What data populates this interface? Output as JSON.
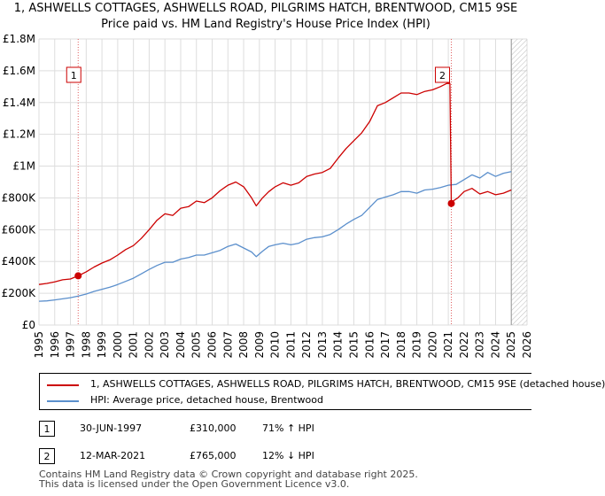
{
  "chart_data": {
    "type": "line",
    "title": "1, ASHWELLS COTTAGES, ASHWELLS ROAD, PILGRIMS HATCH, BRENTWOOD, CM15 9SE",
    "subtitle": "Price paid vs. HM Land Registry's House Price Index (HPI)",
    "xlabel": "",
    "ylabel": "",
    "xlim": [
      1995,
      2026
    ],
    "ylim": [
      0,
      1800000
    ],
    "x_ticks": [
      1995,
      1996,
      1997,
      1998,
      1999,
      2000,
      2001,
      2002,
      2003,
      2004,
      2005,
      2006,
      2007,
      2008,
      2009,
      2010,
      2011,
      2012,
      2013,
      2014,
      2015,
      2016,
      2017,
      2018,
      2019,
      2020,
      2021,
      2022,
      2023,
      2024,
      2025,
      2026
    ],
    "x_tick_labels": [
      "1995",
      "1996",
      "1997",
      "1998",
      "1999",
      "2000",
      "2001",
      "2002",
      "2003",
      "2004",
      "2005",
      "2006",
      "2007",
      "2008",
      "2009",
      "2010",
      "2011",
      "2012",
      "2013",
      "2014",
      "2015",
      "2016",
      "2017",
      "2018",
      "2019",
      "2020",
      "2021",
      "2022",
      "2023",
      "2024",
      "2025",
      "2026"
    ],
    "y_ticks": [
      0,
      200000,
      400000,
      600000,
      800000,
      1000000,
      1200000,
      1400000,
      1600000,
      1800000
    ],
    "y_tick_labels": [
      "£0",
      "£200K",
      "£400K",
      "£600K",
      "£800K",
      "£1M",
      "£1.2M",
      "£1.4M",
      "£1.6M",
      "£1.8M"
    ],
    "grid": true,
    "legend_position": "below",
    "hatched_after": 2025.0,
    "series": [
      {
        "name": "1, ASHWELLS COTTAGES, ASHWELLS ROAD, PILGRIMS HATCH, BRENTWOOD, CM15 9SE (detached house)",
        "color": "#cc0000",
        "x": [
          1995.0,
          1995.5,
          1996.0,
          1996.5,
          1997.0,
          1997.49,
          1998.0,
          1998.5,
          1999.0,
          1999.5,
          2000.0,
          2000.5,
          2001.0,
          2001.5,
          2002.0,
          2002.5,
          2003.0,
          2003.5,
          2004.0,
          2004.5,
          2005.0,
          2005.5,
          2006.0,
          2006.5,
          2007.0,
          2007.5,
          2008.0,
          2008.5,
          2008.8,
          2009.2,
          2009.6,
          2010.0,
          2010.5,
          2011.0,
          2011.5,
          2012.0,
          2012.5,
          2013.0,
          2013.5,
          2014.0,
          2014.5,
          2015.0,
          2015.5,
          2016.0,
          2016.5,
          2017.0,
          2017.5,
          2018.0,
          2018.5,
          2019.0,
          2019.5,
          2020.0,
          2020.5,
          2020.9,
          2021.1,
          2021.19,
          2021.3,
          2021.6,
          2022.0,
          2022.5,
          2023.0,
          2023.5,
          2024.0,
          2024.5,
          2025.0
        ],
        "y": [
          255000,
          262000,
          272000,
          285000,
          290000,
          310000,
          335000,
          365000,
          390000,
          410000,
          440000,
          475000,
          500000,
          545000,
          600000,
          660000,
          700000,
          690000,
          735000,
          745000,
          780000,
          770000,
          800000,
          845000,
          880000,
          900000,
          870000,
          800000,
          750000,
          800000,
          840000,
          870000,
          895000,
          880000,
          895000,
          935000,
          950000,
          960000,
          985000,
          1050000,
          1110000,
          1160000,
          1210000,
          1280000,
          1380000,
          1400000,
          1430000,
          1460000,
          1460000,
          1450000,
          1470000,
          1480000,
          1500000,
          1520000,
          1520000,
          765000,
          780000,
          800000,
          840000,
          860000,
          825000,
          840000,
          820000,
          830000,
          850000
        ]
      },
      {
        "name": "HPI: Average price, detached house, Brentwood",
        "color": "#5b8fcc",
        "x": [
          1995.0,
          1995.5,
          1996.0,
          1996.5,
          1997.0,
          1997.5,
          1998.0,
          1998.5,
          1999.0,
          1999.5,
          2000.0,
          2000.5,
          2001.0,
          2001.5,
          2002.0,
          2002.5,
          2003.0,
          2003.5,
          2004.0,
          2004.5,
          2005.0,
          2005.5,
          2006.0,
          2006.5,
          2007.0,
          2007.5,
          2008.0,
          2008.5,
          2008.8,
          2009.2,
          2009.6,
          2010.0,
          2010.5,
          2011.0,
          2011.5,
          2012.0,
          2012.5,
          2013.0,
          2013.5,
          2014.0,
          2014.5,
          2015.0,
          2015.5,
          2016.0,
          2016.5,
          2017.0,
          2017.5,
          2018.0,
          2018.5,
          2019.0,
          2019.5,
          2020.0,
          2020.5,
          2021.0,
          2021.5,
          2022.0,
          2022.5,
          2023.0,
          2023.5,
          2024.0,
          2024.5,
          2025.0
        ],
        "y": [
          150000,
          152000,
          158000,
          165000,
          172000,
          182000,
          195000,
          212000,
          225000,
          238000,
          255000,
          275000,
          295000,
          322000,
          350000,
          375000,
          395000,
          395000,
          415000,
          425000,
          440000,
          440000,
          455000,
          470000,
          495000,
          510000,
          485000,
          460000,
          430000,
          465000,
          495000,
          505000,
          515000,
          505000,
          515000,
          540000,
          550000,
          555000,
          570000,
          600000,
          635000,
          665000,
          690000,
          740000,
          790000,
          805000,
          820000,
          840000,
          840000,
          830000,
          850000,
          855000,
          865000,
          880000,
          885000,
          915000,
          945000,
          925000,
          960000,
          935000,
          955000,
          965000
        ]
      }
    ],
    "annotations": [
      {
        "label": "1",
        "x": 1997.49,
        "y": 310000
      },
      {
        "label": "2",
        "x": 2021.19,
        "y": 765000
      }
    ]
  },
  "legend": {
    "items": [
      {
        "label": "1, ASHWELLS COTTAGES, ASHWELLS ROAD, PILGRIMS HATCH, BRENTWOOD, CM15 9SE (detached house)",
        "color": "#cc0000"
      },
      {
        "label": "HPI: Average price, detached house, Brentwood",
        "color": "#5b8fcc"
      }
    ]
  },
  "sales": [
    {
      "num": "1",
      "date": "30-JUN-1997",
      "price": "£310,000",
      "hpi": "71% ↑ HPI"
    },
    {
      "num": "2",
      "date": "12-MAR-2021",
      "price": "£765,000",
      "hpi": "12% ↓ HPI"
    }
  ],
  "footer": {
    "line1": "Contains HM Land Registry data © Crown copyright and database right 2025.",
    "line2": "This data is licensed under the Open Government Licence v3.0."
  }
}
